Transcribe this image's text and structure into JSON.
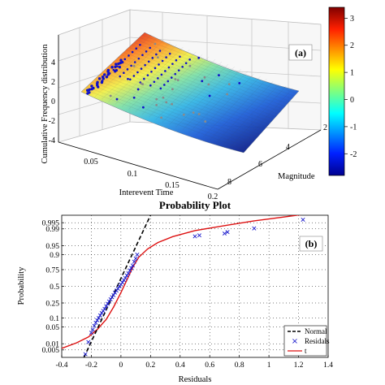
{
  "chart_data": [
    {
      "type": "surface3d",
      "panel_label": "(a)",
      "zlabel": "Cumulative Frequency distribution",
      "xlabel": "Interevent Time",
      "ylabel": "Magnitude",
      "x_ticks": [
        "0.05",
        "0.1",
        "0.15",
        "0.2"
      ],
      "y_ticks": [
        "2",
        "4",
        "6",
        "8"
      ],
      "z_ticks": [
        "4",
        "2",
        "0",
        "-2",
        "-4"
      ],
      "xlim": [
        0.0,
        0.2
      ],
      "ylim": [
        2,
        8
      ],
      "zlim": [
        -4,
        4
      ],
      "colorbar": {
        "ticks": [
          "3",
          "2",
          "1",
          "0",
          "-1",
          "-2"
        ],
        "range": [
          -2.8,
          3.4
        ],
        "colormap": "jet"
      },
      "surface_colors": [
        "#0b1e8a",
        "#1f5fd8",
        "#35b6e6",
        "#7fe0a8",
        "#f2f04a",
        "#ff8a24",
        "#d8141c"
      ],
      "marker_color": "#1010c8"
    },
    {
      "type": "scatter",
      "title": "Probability Plot",
      "panel_label": "(b)",
      "xlabel": "Residuals",
      "ylabel": "Probability",
      "xlim": [
        -0.4,
        1.4
      ],
      "x_ticks": [
        "-0.4",
        "-0.2",
        "0",
        "0.2",
        "0.4",
        "0.6",
        "0.8",
        "1",
        "1.2",
        "1.4"
      ],
      "y_ticks": [
        "0.995",
        "0.99",
        "0.95",
        "0.9",
        "0.75",
        "0.5",
        "0.25",
        "0.1",
        "0.05",
        "0.01",
        "0.005"
      ],
      "y_tick_probs": [
        0.995,
        0.99,
        0.95,
        0.9,
        0.75,
        0.5,
        0.25,
        0.1,
        0.05,
        0.01,
        0.005
      ],
      "ylim_prob": [
        0.002,
        0.998
      ],
      "grid": true,
      "legend": {
        "placement": "bottom-right",
        "entries": [
          "Normal",
          "Residals",
          "t"
        ]
      },
      "colors": {
        "normal": "#000000",
        "residuals": "#1a1acc",
        "t": "#dd1111"
      },
      "normal_line": {
        "x": [
          -0.25,
          0.2
        ],
        "p": [
          0.002,
          0.998
        ]
      },
      "t_curve": {
        "x": [
          -0.4,
          -0.3,
          -0.22,
          -0.16,
          -0.1,
          -0.05,
          0.0,
          0.04,
          0.08,
          0.12,
          0.18,
          0.25,
          0.35,
          0.5,
          0.7,
          0.9,
          1.1,
          1.3,
          1.4
        ],
        "p": [
          0.006,
          0.011,
          0.02,
          0.04,
          0.09,
          0.2,
          0.4,
          0.6,
          0.78,
          0.88,
          0.935,
          0.962,
          0.978,
          0.988,
          0.993,
          0.996,
          0.9975,
          0.9985,
          0.999
        ]
      },
      "residuals": {
        "x": [
          -0.24,
          -0.22,
          -0.2,
          -0.19,
          -0.18,
          -0.17,
          -0.16,
          -0.15,
          -0.14,
          -0.13,
          -0.12,
          -0.11,
          -0.1,
          -0.09,
          -0.08,
          -0.07,
          -0.06,
          -0.05,
          -0.04,
          -0.03,
          -0.02,
          -0.01,
          0.0,
          0.01,
          0.02,
          0.03,
          0.04,
          0.05,
          0.06,
          0.07,
          0.08,
          0.09,
          0.1,
          0.11,
          0.5,
          0.53,
          0.7,
          0.72,
          0.9,
          1.23
        ],
        "p": [
          0.003,
          0.012,
          0.03,
          0.04,
          0.055,
          0.07,
          0.085,
          0.1,
          0.12,
          0.14,
          0.16,
          0.18,
          0.21,
          0.24,
          0.27,
          0.3,
          0.33,
          0.36,
          0.4,
          0.43,
          0.46,
          0.5,
          0.53,
          0.56,
          0.6,
          0.63,
          0.67,
          0.7,
          0.74,
          0.77,
          0.8,
          0.84,
          0.87,
          0.9,
          0.9785,
          0.9805,
          0.9838,
          0.986,
          0.9905,
          0.9965
        ]
      }
    }
  ]
}
